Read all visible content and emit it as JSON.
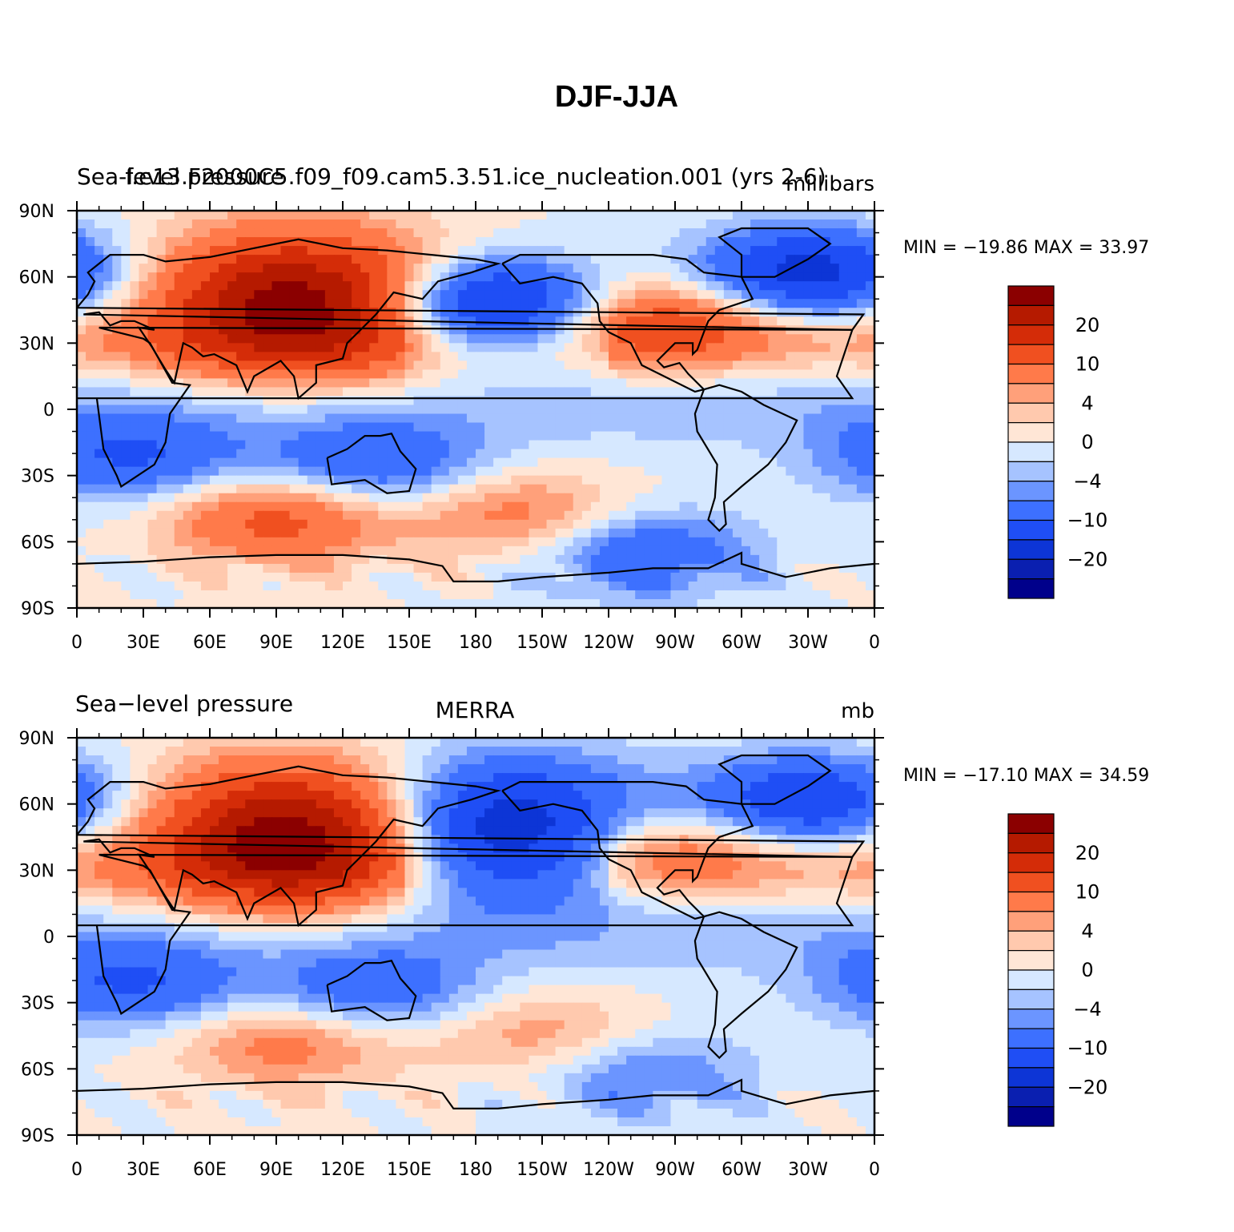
{
  "figure_title": "DJF-JJA",
  "colors": {
    "levels": [
      "#00008b",
      "#0a1fb0",
      "#0d35d6",
      "#1f4ef5",
      "#3d70ff",
      "#6b95ff",
      "#a6c3ff",
      "#d6e8ff",
      "#ffe6d6",
      "#ffc9ae",
      "#ffa07a",
      "#ff7a4a",
      "#f05020",
      "#d42c08",
      "#b51a00",
      "#8b0000"
    ],
    "coastline": "#000000"
  },
  "chart_data": [
    {
      "type": "heatmap",
      "left_label": "Sea-level pressure",
      "center_label": "f.e13.F2000C5.f09_f09.cam5.3.51.ice_nucleation.001 (yrs 2-6)",
      "right_label": "millibars",
      "stats": {
        "min": -19.86,
        "max": 33.97,
        "text": "MIN = −19.86  MAX =   33.97"
      },
      "xticks": [
        "0",
        "30E",
        "60E",
        "90E",
        "120E",
        "150E",
        "180",
        "150W",
        "120W",
        "90W",
        "60W",
        "30W",
        "0"
      ],
      "yticks": [
        "90N",
        "60N",
        "30N",
        "0",
        "30S",
        "60S",
        "90S"
      ],
      "xlim": [
        0,
        360
      ],
      "ylim": [
        -90,
        90
      ],
      "colorbar_labels": [
        "20",
        "10",
        "4",
        "0",
        "−4",
        "−10",
        "−20"
      ],
      "field": {
        "Siberian High": [
          100,
          48,
          28
        ],
        "Aleutian Low": [
          185,
          48,
          -20
        ],
        "Icelandic Low": [
          330,
          62,
          -18
        ],
        "North America High": [
          265,
          40,
          12
        ],
        "Southern Africa Low": [
          25,
          -22,
          -10
        ],
        "Australia Low": [
          133,
          -25,
          -10
        ],
        "Southern Ocean High Indian": [
          90,
          -50,
          12
        ],
        "Southern Ocean High Pacific": [
          200,
          -48,
          8
        ],
        "Amundsen Low": [
          255,
          -65,
          -10
        ]
      }
    },
    {
      "type": "heatmap",
      "left_label": "Sea−level pressure",
      "center_label": "MERRA",
      "right_label": "mb",
      "stats": {
        "min": -17.1,
        "max": 34.59,
        "text": "MIN = −17.10  MAX =   34.59"
      },
      "xticks": [
        "0",
        "30E",
        "60E",
        "90E",
        "120E",
        "150E",
        "180",
        "150W",
        "120W",
        "90W",
        "60W",
        "30W",
        "0"
      ],
      "yticks": [
        "90N",
        "60N",
        "30N",
        "0",
        "30S",
        "60S",
        "90S"
      ],
      "xlim": [
        0,
        360
      ],
      "ylim": [
        -90,
        90
      ],
      "colorbar_labels": [
        "20",
        "10",
        "4",
        "0",
        "−4",
        "−10",
        "−20"
      ],
      "field": {
        "Siberian High": [
          100,
          45,
          30
        ],
        "Aleutian Low": [
          190,
          48,
          -22
        ],
        "Icelandic Low": [
          330,
          62,
          -15
        ],
        "North America High": [
          262,
          40,
          9
        ],
        "Southern Africa Low": [
          25,
          -22,
          -10
        ],
        "Australia Low": [
          133,
          -25,
          -9
        ],
        "Southern Ocean High Indian": [
          95,
          -48,
          8
        ],
        "Southern Ocean High Pacific": [
          210,
          -45,
          6
        ],
        "Amundsen Low": [
          255,
          -62,
          -7
        ]
      }
    }
  ]
}
